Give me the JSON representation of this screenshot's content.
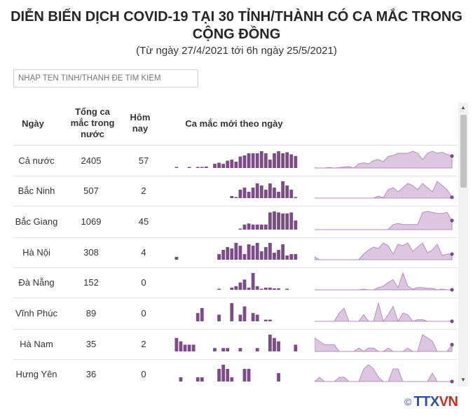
{
  "title_line1": "DIỄN BIẾN DỊCH COVID-19 TẠI 30 TỈNH/THÀNH CÓ CA MẮC TRONG",
  "title_line2": "CỘNG ĐỒNG",
  "subtitle": "(Từ ngày 27/4/2021 tới 6h ngày 25/5/2021)",
  "search": {
    "placeholder": "NHẬP TÊN TỈNH/THÀNH ĐỂ TÌM KIẾM"
  },
  "columns": {
    "name": "Ngày",
    "total": "Tổng ca mắc trong nước",
    "today": "Hôm nay",
    "trend": "Ca mắc mới theo ngày"
  },
  "colors": {
    "bar": "#7d4a8a",
    "area_fill": "#dcc6e0",
    "area_line": "#b48fbd",
    "dot": "#7d4a8a"
  },
  "logo": {
    "copy": "©",
    "brand_a": "TTX",
    "brand_b": "VN"
  },
  "chart_data": {
    "type": "table",
    "columns": [
      "Ngày",
      "Tổng ca mắc trong nước",
      "Hôm nay",
      "Ca mắc mới theo ngày"
    ],
    "rows": [
      {
        "name": "Cả nước",
        "total": 2405,
        "today": 57,
        "daily": [
          1,
          0,
          0,
          3,
          0,
          2,
          5,
          7,
          0,
          20,
          25,
          20,
          35,
          40,
          30,
          55,
          60,
          70,
          70,
          70,
          80,
          70,
          40,
          70,
          80,
          70,
          75,
          65,
          57
        ]
      },
      {
        "name": "Bắc Ninh",
        "total": 507,
        "today": 2,
        "daily": [
          0,
          0,
          0,
          0,
          0,
          0,
          0,
          0,
          0,
          0,
          0,
          0,
          0,
          5,
          1,
          20,
          25,
          15,
          25,
          35,
          30,
          20,
          35,
          25,
          15,
          40,
          30,
          20,
          2
        ]
      },
      {
        "name": "Bắc Giang",
        "total": 1069,
        "today": 45,
        "daily": [
          0,
          0,
          0,
          0,
          0,
          0,
          0,
          0,
          0,
          0,
          0,
          0,
          0,
          0,
          0,
          1,
          25,
          30,
          25,
          25,
          25,
          25,
          85,
          90,
          85,
          80,
          80,
          85,
          45
        ]
      },
      {
        "name": "Hà Nội",
        "total": 308,
        "today": 4,
        "daily": [
          2,
          0,
          0,
          0,
          0,
          0,
          0,
          0,
          0,
          0,
          4,
          7,
          9,
          8,
          12,
          10,
          4,
          11,
          10,
          12,
          6,
          9,
          12,
          5,
          7,
          11,
          3,
          4,
          4
        ]
      },
      {
        "name": "Đà Nẵng",
        "total": 152,
        "today": 0,
        "daily": [
          0,
          0,
          0,
          0,
          0,
          0,
          0,
          0,
          0,
          0,
          1,
          0,
          0,
          3,
          5,
          10,
          14,
          3,
          23,
          5,
          1,
          3,
          3,
          2,
          2,
          0,
          1,
          0,
          0
        ]
      },
      {
        "name": "Vĩnh Phúc",
        "total": 89,
        "today": 0,
        "daily": [
          0,
          0,
          0,
          0,
          0,
          5,
          8,
          0,
          0,
          0,
          4,
          0,
          0,
          11,
          0,
          4,
          9,
          0,
          5,
          4,
          0,
          1,
          1,
          0,
          0,
          0,
          0,
          0,
          0
        ]
      },
      {
        "name": "Hà Nam",
        "total": 35,
        "today": 2,
        "daily": [
          4,
          3,
          2,
          2,
          2,
          0,
          0,
          0,
          0,
          1,
          0,
          1,
          1,
          0,
          0,
          1,
          0,
          0,
          0,
          1,
          0,
          0,
          5,
          4,
          3,
          0,
          0,
          0,
          2
        ]
      },
      {
        "name": "Hưng Yên",
        "total": 36,
        "today": 0,
        "daily": [
          0,
          1,
          0,
          0,
          0,
          1,
          1,
          0,
          0,
          0,
          3,
          4,
          3,
          1,
          0,
          0,
          3,
          3,
          0,
          0,
          0,
          0,
          0,
          0,
          2,
          0,
          0,
          0,
          0
        ]
      }
    ]
  }
}
